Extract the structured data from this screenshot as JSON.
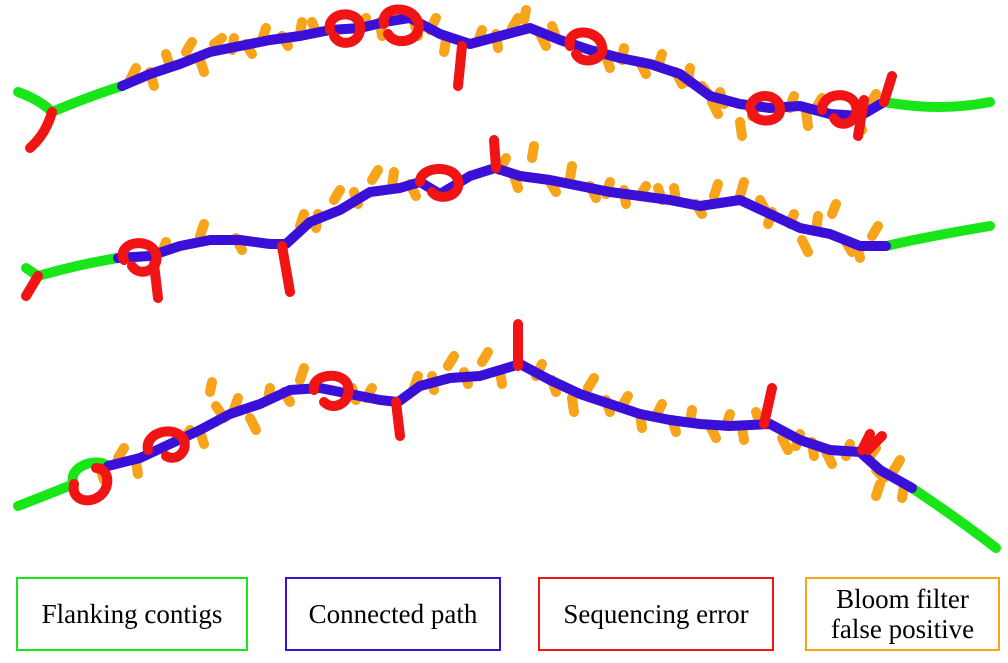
{
  "colors": {
    "flanking": "#19e619",
    "connected": "#3a10d8",
    "seq_error": "#f01414",
    "bloom": "#f7a41a"
  },
  "legend": [
    {
      "key": "flanking",
      "label": "Flanking contigs"
    },
    {
      "key": "connected",
      "label": "Connected path"
    },
    {
      "key": "seq_error",
      "label": "Sequencing error"
    },
    {
      "key": "bloom",
      "label": "Bloom filter\nfalse positive"
    }
  ]
}
